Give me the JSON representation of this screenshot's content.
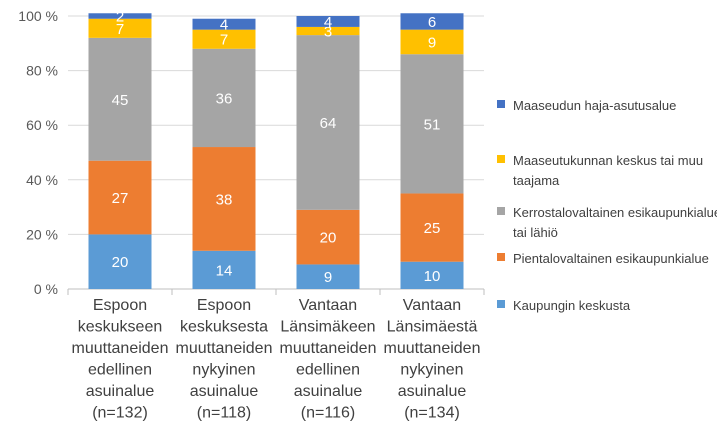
{
  "chart_data": {
    "type": "bar",
    "stacked": true,
    "percent": true,
    "categories": [
      [
        "Espoon",
        "keskukseen",
        "muuttaneiden",
        "edellinen",
        "asuinalue",
        "(n=132)"
      ],
      [
        "Espoon",
        "keskuksesta",
        "muuttaneiden",
        "nykyinen",
        "asuinalue",
        "(n=118)"
      ],
      [
        "Vantaan",
        "Länsimäkeen",
        "muuttaneiden",
        "edellinen",
        "asuinalue",
        "(n=116)"
      ],
      [
        "Vantaan",
        "Länsimäestä",
        "muuttaneiden",
        "nykyinen",
        "asuinalue",
        "(n=134)"
      ]
    ],
    "series": [
      {
        "name": "Kaupungin keskusta",
        "color": "#5B9BD5",
        "values": [
          20,
          14,
          9,
          10
        ]
      },
      {
        "name": "Pientalovaltainen esikaupunkialue",
        "color": "#ED7D31",
        "values": [
          27,
          38,
          20,
          25
        ]
      },
      {
        "name": "Kerrostalovaltainen esikaupunkialue tai lähiö",
        "color": "#A5A5A5",
        "values": [
          45,
          36,
          64,
          51
        ]
      },
      {
        "name": "Maaseutukunnan keskus tai muu taajama",
        "color": "#FFC000",
        "values": [
          7,
          7,
          3,
          9
        ]
      },
      {
        "name": "Maaseudun haja-asutusalue",
        "color": "#4472C4",
        "values": [
          2,
          4,
          4,
          6
        ]
      }
    ],
    "y_ticks": [
      "0 %",
      "20 %",
      "40 %",
      "60 %",
      "80 %",
      "100 %"
    ],
    "ylim": [
      0,
      100
    ],
    "grid": true,
    "legend_position": "right",
    "legend": [
      [
        "Maaseudun haja-asutusalue"
      ],
      [
        "Maaseutukunnan keskus tai muu",
        "taajama"
      ],
      [
        "Kerrostalovaltainen esikaupunkialue",
        "tai lähiö"
      ],
      [
        "Pientalovaltainen esikaupunkialue"
      ],
      [
        "Kaupungin keskusta"
      ]
    ],
    "legend_colors": [
      "#4472C4",
      "#FFC000",
      "#A5A5A5",
      "#ED7D31",
      "#5B9BD5"
    ]
  }
}
